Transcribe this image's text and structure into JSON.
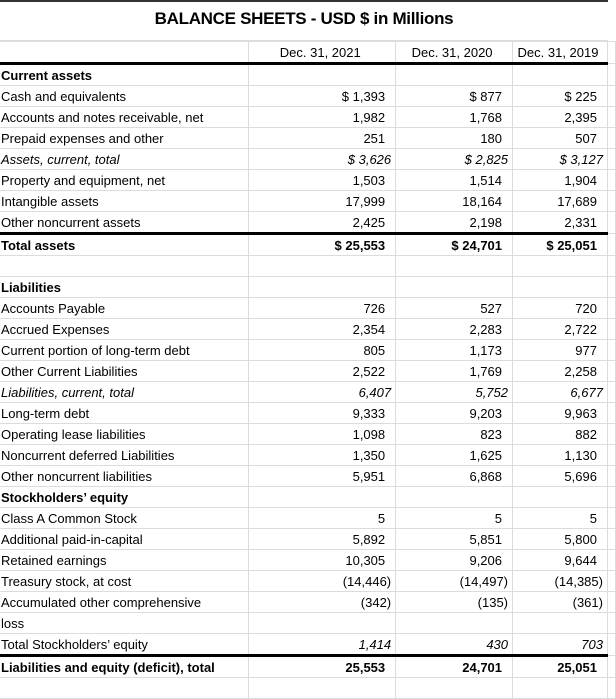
{
  "title": "BALANCE SHEETS - USD $ in Millions",
  "columns": [
    "Dec. 31, 2021",
    "Dec. 31, 2020",
    "Dec. 31, 2019"
  ],
  "rows": [
    {
      "label": "Current assets",
      "values": [
        "",
        "",
        ""
      ],
      "style": "bold"
    },
    {
      "label": "Cash and equivalents",
      "values": [
        "$ 1,393",
        "$ 877",
        "$ 225"
      ]
    },
    {
      "label": "Accounts and notes receivable, net",
      "values": [
        "1,982",
        "1,768",
        "2,395"
      ]
    },
    {
      "label": "Prepaid expenses and other",
      "values": [
        "251",
        "180",
        "507"
      ]
    },
    {
      "label": "Assets, current, total",
      "values": [
        "$ 3,626",
        "$ 2,825",
        "$ 3,127"
      ],
      "style": "ital"
    },
    {
      "label": "Property and equipment, net",
      "values": [
        "1,503",
        "1,514",
        "1,904"
      ]
    },
    {
      "label": "Intangible assets",
      "values": [
        "17,999",
        "18,164",
        "17,689"
      ]
    },
    {
      "label": "Other noncurrent assets",
      "values": [
        "2,425",
        "2,198",
        "2,331"
      ]
    },
    {
      "label": "Total assets",
      "values": [
        "$ 25,553",
        "$ 24,701",
        "$ 25,051"
      ],
      "style": "bold topline"
    },
    {
      "label": "",
      "values": [
        "",
        "",
        ""
      ]
    },
    {
      "label": "Liabilities",
      "values": [
        "",
        "",
        ""
      ],
      "style": "bold"
    },
    {
      "label": "Accounts Payable",
      "values": [
        "726",
        "527",
        "720"
      ]
    },
    {
      "label": "Accrued Expenses",
      "values": [
        "2,354",
        "2,283",
        "2,722"
      ]
    },
    {
      "label": "Current portion of long-term debt",
      "values": [
        "805",
        "1,173",
        "977"
      ]
    },
    {
      "label": "Other Current Liabilities",
      "values": [
        "2,522",
        "1,769",
        "2,258"
      ]
    },
    {
      "label": "Liabilities, current, total",
      "values": [
        "6,407",
        "5,752",
        "6,677"
      ],
      "style": "ital"
    },
    {
      "label": "Long-term debt",
      "values": [
        "9,333",
        "9,203",
        "9,963"
      ]
    },
    {
      "label": "Operating lease liabilities",
      "values": [
        "1,098",
        "823",
        "882"
      ]
    },
    {
      "label": "Noncurrent deferred Liabilities",
      "values": [
        "1,350",
        "1,625",
        "1,130"
      ]
    },
    {
      "label": "Other noncurrent liabilities",
      "values": [
        "5,951",
        "6,868",
        "5,696"
      ]
    },
    {
      "label": "Stockholders’ equity",
      "values": [
        "",
        "",
        ""
      ],
      "style": "bold"
    },
    {
      "label": "Class A Common Stock",
      "values": [
        "5",
        "5",
        "5"
      ]
    },
    {
      "label": "Additional paid-in-capital",
      "values": [
        "5,892",
        "5,851",
        "5,800"
      ]
    },
    {
      "label": "Retained earnings",
      "values": [
        "10,305",
        "9,206",
        "9,644"
      ]
    },
    {
      "label": "Treasury stock, at cost",
      "values": [
        "(14,446)",
        "(14,497)",
        "(14,385)"
      ]
    },
    {
      "label": "Accumulated other comprehensive",
      "values": [
        "(342)",
        "(135)",
        "(361)"
      ]
    },
    {
      "label": "loss",
      "values": [
        "",
        "",
        ""
      ]
    },
    {
      "label": "Total Stockholders’ equity",
      "values": [
        "1,414",
        "430",
        "703"
      ],
      "style": "ital-nums"
    },
    {
      "label": "Liabilities and equity (deficit), total",
      "values": [
        "25,553",
        "24,701",
        "25,051"
      ],
      "style": "bold topline"
    },
    {
      "label": "",
      "values": [
        "",
        "",
        ""
      ]
    }
  ]
}
